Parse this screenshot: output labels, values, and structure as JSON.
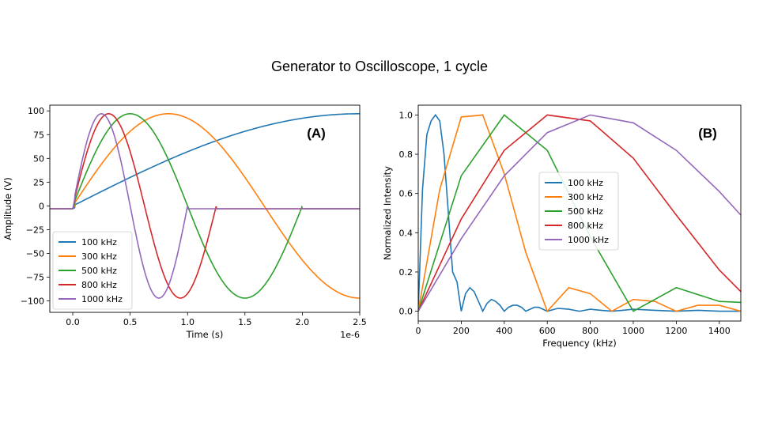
{
  "title": "Generator to Oscilloscope, 1 cycle",
  "chart_data": [
    {
      "type": "line",
      "panel_label": "(A)",
      "xlabel": "Time (s)",
      "ylabel": "Amplitude (V)",
      "x_offset_text": "1e-6",
      "xlim": [
        -0.2,
        2.5
      ],
      "ylim": [
        -112,
        106
      ],
      "x_ticks": [
        "0.0",
        "0.5",
        "1.0",
        "1.5",
        "2.0",
        "2.5"
      ],
      "y_ticks": [
        "100",
        "75",
        "50",
        "25",
        "0",
        "−25",
        "−50",
        "−75",
        "−100"
      ],
      "legend_position": "lower-left",
      "series": [
        {
          "name": "100 kHz",
          "color": "#1f77b4",
          "frequency_khz": 100
        },
        {
          "name": "300 kHz",
          "color": "#ff7f0e",
          "frequency_khz": 300
        },
        {
          "name": "500 kHz",
          "color": "#2ca02c",
          "frequency_khz": 500
        },
        {
          "name": "800 kHz",
          "color": "#d62728",
          "frequency_khz": 800
        },
        {
          "name": "1000 kHz",
          "color": "#9467bd",
          "frequency_khz": 1000
        }
      ]
    },
    {
      "type": "line",
      "panel_label": "(B)",
      "xlabel": "Frequency (kHz)",
      "ylabel": "Normalized Intensity",
      "xlim": [
        0,
        1500
      ],
      "ylim": [
        -0.05,
        1.05
      ],
      "x_ticks": [
        "0",
        "200",
        "400",
        "600",
        "800",
        "1000",
        "1200",
        "1400"
      ],
      "y_ticks": [
        "0.0",
        "0.2",
        "0.4",
        "0.6",
        "0.8",
        "1.0"
      ],
      "legend_position": "center",
      "series": [
        {
          "name": "100 kHz",
          "color": "#1f77b4",
          "x": [
            0,
            20,
            40,
            60,
            80,
            100,
            120,
            140,
            160,
            180,
            200,
            220,
            240,
            260,
            280,
            300,
            320,
            340,
            360,
            380,
            400,
            420,
            440,
            460,
            480,
            500,
            520,
            540,
            560,
            580,
            600,
            650,
            700,
            750,
            800,
            850,
            900,
            950,
            1000,
            1100,
            1200,
            1300,
            1400,
            1500
          ],
          "y": [
            0.0,
            0.62,
            0.9,
            0.97,
            1.0,
            0.97,
            0.8,
            0.5,
            0.2,
            0.15,
            0.0,
            0.09,
            0.12,
            0.1,
            0.05,
            0.0,
            0.04,
            0.06,
            0.05,
            0.03,
            0.0,
            0.02,
            0.03,
            0.03,
            0.02,
            0.0,
            0.01,
            0.02,
            0.02,
            0.01,
            0.0,
            0.015,
            0.01,
            0.0,
            0.01,
            0.005,
            0.0,
            0.005,
            0.01,
            0.005,
            0.0,
            0.005,
            0.0,
            0.0
          ]
        },
        {
          "name": "300 kHz",
          "color": "#ff7f0e",
          "x": [
            0,
            100,
            200,
            300,
            400,
            500,
            600,
            700,
            800,
            900,
            1000,
            1100,
            1200,
            1300,
            1400,
            1500
          ],
          "y": [
            0.0,
            0.62,
            0.99,
            1.0,
            0.7,
            0.3,
            0.0,
            0.12,
            0.09,
            0.0,
            0.06,
            0.05,
            0.0,
            0.03,
            0.03,
            0.0
          ]
        },
        {
          "name": "500 kHz",
          "color": "#2ca02c",
          "x": [
            0,
            200,
            400,
            600,
            800,
            1000,
            1200,
            1400,
            1500
          ],
          "y": [
            0.0,
            0.69,
            1.0,
            0.82,
            0.38,
            0.0,
            0.12,
            0.05,
            0.045
          ]
        },
        {
          "name": "800 kHz",
          "color": "#d62728",
          "x": [
            0,
            200,
            400,
            600,
            800,
            1000,
            1200,
            1400,
            1500
          ],
          "y": [
            0.0,
            0.47,
            0.82,
            1.0,
            0.97,
            0.78,
            0.49,
            0.21,
            0.1
          ]
        },
        {
          "name": "1000 kHz",
          "color": "#9467bd",
          "x": [
            0,
            200,
            400,
            600,
            800,
            1000,
            1200,
            1400,
            1500
          ],
          "y": [
            0.0,
            0.37,
            0.69,
            0.91,
            1.0,
            0.96,
            0.82,
            0.61,
            0.49
          ]
        }
      ]
    }
  ]
}
